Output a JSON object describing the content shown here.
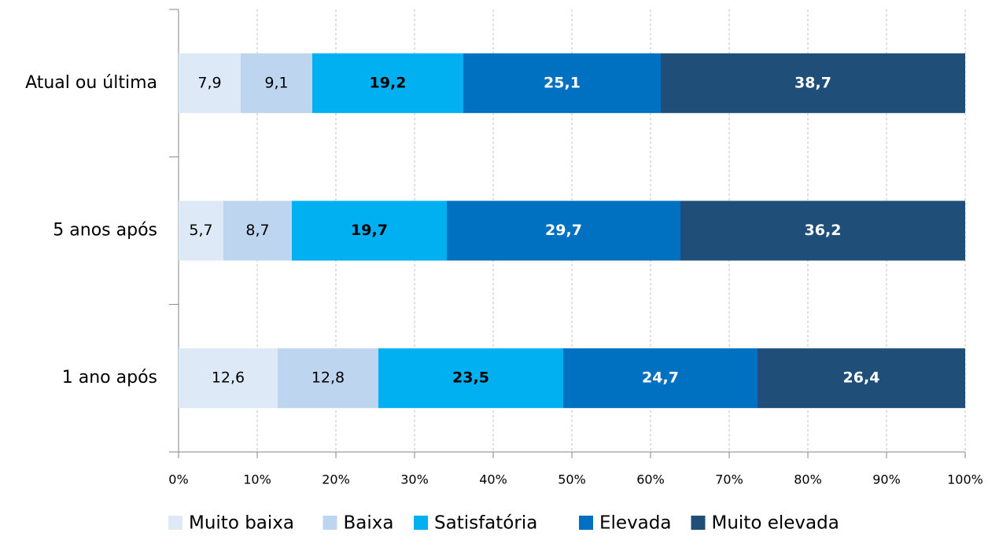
{
  "chart_data": {
    "type": "stacked_bar_horizontal",
    "categories": [
      "Atual ou última",
      "5 anos após",
      "1 ano após"
    ],
    "series": [
      {
        "name": "Muito baixa",
        "color": "#dde9f6",
        "label_color": "#000000",
        "label_weight": "normal",
        "values": [
          7.9,
          5.7,
          12.6
        ],
        "value_labels": [
          "7,9",
          "5,7",
          "12,6"
        ]
      },
      {
        "name": "Baixa",
        "color": "#bdd5ee",
        "label_color": "#000000",
        "label_weight": "normal",
        "values": [
          9.1,
          8.7,
          12.8
        ],
        "value_labels": [
          "9,1",
          "8,7",
          "12,8"
        ]
      },
      {
        "name": "Satisfatória",
        "color": "#00b0f0",
        "label_color": "#000000",
        "label_weight": "bold",
        "values": [
          19.2,
          19.7,
          23.5
        ],
        "value_labels": [
          "19,2",
          "19,7",
          "23,5"
        ]
      },
      {
        "name": "Elevada",
        "color": "#0070c0",
        "label_color": "#ffffff",
        "label_weight": "bold",
        "values": [
          25.1,
          29.7,
          24.7
        ],
        "value_labels": [
          "25,1",
          "29,7",
          "24,7"
        ]
      },
      {
        "name": "Muito elevada",
        "color": "#1f4e79",
        "label_color": "#ffffff",
        "label_weight": "bold",
        "values": [
          38.7,
          36.2,
          26.4
        ],
        "value_labels": [
          "38,7",
          "36,2",
          "26,4"
        ]
      }
    ],
    "xlim": [
      0,
      100
    ],
    "xticks": [
      {
        "value": 0,
        "label": "0%"
      },
      {
        "value": 10,
        "label": "10%"
      },
      {
        "value": 20,
        "label": "20%"
      },
      {
        "value": 30,
        "label": "30%"
      },
      {
        "value": 40,
        "label": "40%"
      },
      {
        "value": 50,
        "label": "50%"
      },
      {
        "value": 60,
        "label": "60%"
      },
      {
        "value": 70,
        "label": "70%"
      },
      {
        "value": 80,
        "label": "80%"
      },
      {
        "value": 90,
        "label": "90%"
      },
      {
        "value": 100,
        "label": "100%"
      }
    ],
    "grid": true,
    "legend": "bottom"
  }
}
